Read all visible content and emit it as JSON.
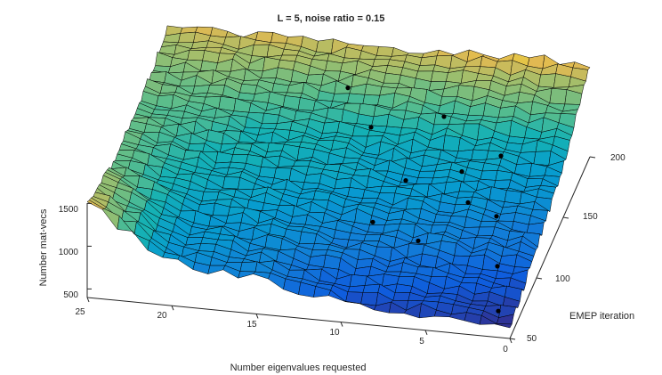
{
  "chart_data": {
    "type": "surface3d",
    "title": "L = 5, noise ratio = 0.15",
    "xlabel": "Number eigenvalues requested",
    "ylabel": "EMEP iteration",
    "zlabel": "Number mat-vecs",
    "xlim": [
      0,
      25
    ],
    "ylim": [
      50,
      200
    ],
    "zlim": [
      400,
      1600
    ],
    "xticks": [
      "0",
      "5",
      "10",
      "15",
      "20",
      "25"
    ],
    "yticks": [
      "50",
      "100",
      "150",
      "200"
    ],
    "zticks": [
      "500",
      "1000",
      "1500"
    ],
    "colormap": "parula",
    "grid": false,
    "surface_rows_by_eigenvalues_requested": [
      0,
      5,
      10,
      15,
      20,
      25
    ],
    "surface_cols_by_emep_iteration": [
      50,
      100,
      150,
      200
    ],
    "surface_values_approx": [
      [
        500,
        760,
        980,
        1480
      ],
      [
        580,
        850,
        1050,
        1500
      ],
      [
        620,
        900,
        1080,
        1460
      ],
      [
        820,
        980,
        1120,
        1440
      ],
      [
        900,
        1060,
        1200,
        1460
      ],
      [
        1500,
        1300,
        1280,
        1420
      ]
    ],
    "marker_points_approx": [
      {
        "x": 3,
        "y": 120,
        "z": 780
      },
      {
        "x": 4,
        "y": 160,
        "z": 900
      },
      {
        "x": 5,
        "y": 130,
        "z": 760
      },
      {
        "x": 6,
        "y": 150,
        "z": 820
      },
      {
        "x": 7,
        "y": 100,
        "z": 700
      },
      {
        "x": 8,
        "y": 180,
        "z": 1000
      },
      {
        "x": 9,
        "y": 140,
        "z": 800
      },
      {
        "x": 10,
        "y": 110,
        "z": 720
      },
      {
        "x": 12,
        "y": 170,
        "z": 940
      },
      {
        "x": 14,
        "y": 190,
        "z": 1080
      },
      {
        "x": 1,
        "y": 60,
        "z": 560
      },
      {
        "x": 2,
        "y": 90,
        "z": 640
      }
    ]
  }
}
